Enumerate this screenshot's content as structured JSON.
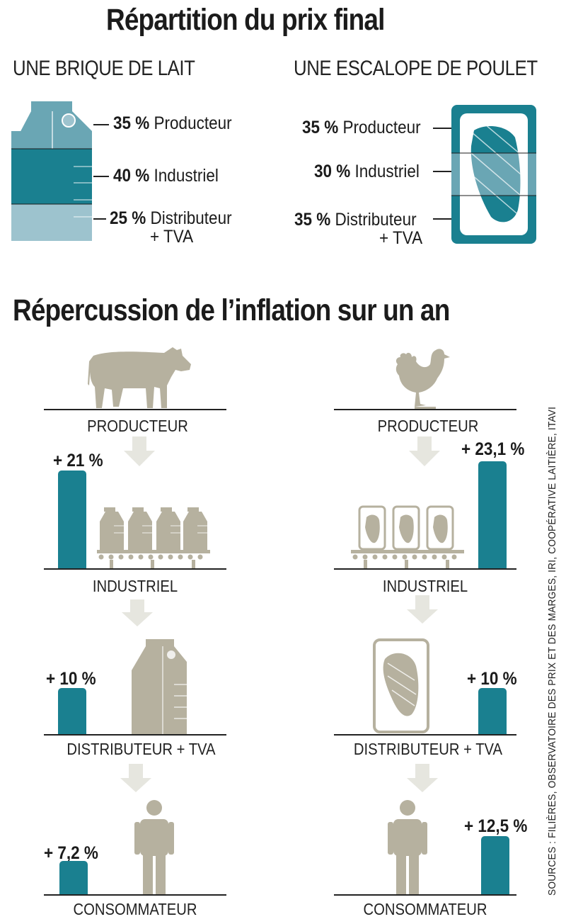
{
  "colors": {
    "teal": "#1a8090",
    "teal_light": "#6aa6b4",
    "teal_pale": "#9dc3ce",
    "beige": "#b6b19f",
    "arrow": "#e6e6df"
  },
  "title_1": "Répartition du prix final",
  "title_2": "Répercussion de l’inflation sur un an",
  "milk": {
    "heading": "UNE BRIQUE DE LAIT",
    "shares": [
      {
        "pct": "35 %",
        "label": "Producteur",
        "label2": ""
      },
      {
        "pct": "40 %",
        "label": "Industriel",
        "label2": ""
      },
      {
        "pct": "25 %",
        "label": "Distributeur",
        "label2": "+ TVA"
      }
    ]
  },
  "chicken": {
    "heading": "UNE ESCALOPE DE POULET",
    "shares": [
      {
        "pct": "35 %",
        "label": "Producteur",
        "label2": ""
      },
      {
        "pct": "30 %",
        "label": "Industriel",
        "label2": ""
      },
      {
        "pct": "35 %",
        "label": "Distributeur",
        "label2": "+ TVA"
      }
    ]
  },
  "stages": {
    "producer": "PRODUCTEUR",
    "industrial": "INDUSTRIEL",
    "distributor": "DISTRIBUTEUR + TVA",
    "consumer": "CONSOMMATEUR"
  },
  "chart_data": [
    {
      "type": "bar",
      "title": "UNE BRIQUE DE LAIT",
      "categories": [
        "Industriel",
        "Distributeur + TVA",
        "Consommateur"
      ],
      "values": [
        21,
        10,
        7.2
      ],
      "labels": [
        "+ 21 %",
        "+ 10 %",
        "+ 7,2 %"
      ]
    },
    {
      "type": "bar",
      "title": "UNE ESCALOPE DE POULET",
      "categories": [
        "Industriel",
        "Distributeur + TVA",
        "Consommateur"
      ],
      "values": [
        23.1,
        10,
        12.5
      ],
      "labels": [
        "+ 23,1 %",
        "+ 10 %",
        "+ 12,5 %"
      ]
    }
  ],
  "source": "SOURCES : FILIÈRES, OBSERVATOIRE DES PRIX ET DES MARGES, IRI, COOPÉRATIVE LAITIÈRE, ITAVI"
}
